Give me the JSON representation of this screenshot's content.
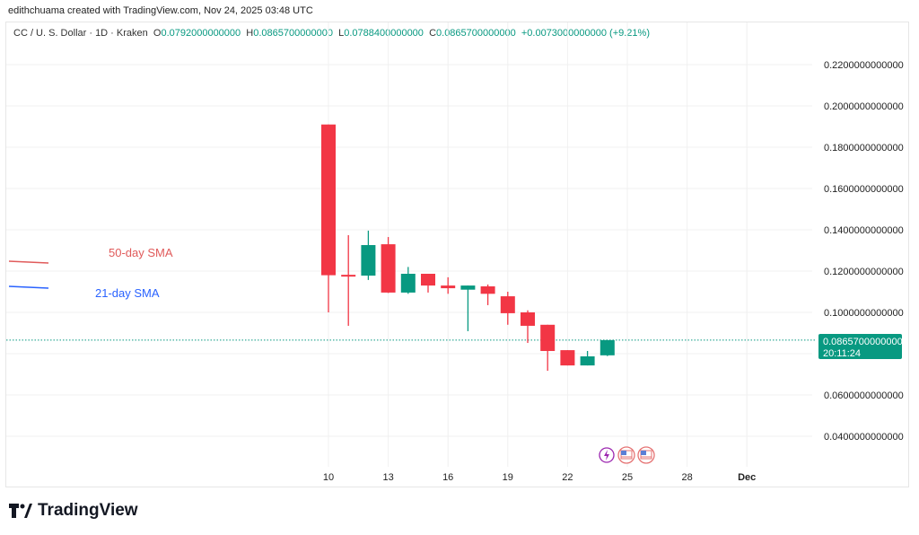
{
  "credit": "edithchuama created with TradingView.com, Nov 24, 2025 03:48 UTC",
  "legend": {
    "symbol": "CC / U. S. Dollar · 1D · Kraken",
    "o_label": "O",
    "o": "0.0792000000000",
    "h_label": "H",
    "h": "0.0865700000000",
    "l_label": "L",
    "l": "0.0788400000000",
    "c_label": "C",
    "c": "0.0865700000000",
    "change": "+0.0073000000000 (+9.21%)"
  },
  "annotations": {
    "sma50": "50-day SMA",
    "sma21": "21-day SMA"
  },
  "price_tag": {
    "price": "0.0865700000000",
    "countdown": "20:11:24"
  },
  "logo": "TradingView",
  "colors": {
    "up": "#089981",
    "down": "#f23645",
    "sma50": "#e05a5a",
    "sma21": "#2962ff"
  },
  "chart_data": {
    "type": "candlestick",
    "title": "",
    "ylim": [
      0.03,
      0.23
    ],
    "y_ticks": [
      "0.2200000000000",
      "0.2000000000000",
      "0.1800000000000",
      "0.1600000000000",
      "0.1400000000000",
      "0.1200000000000",
      "0.1000000000000",
      "0.0600000000000",
      "0.0400000000000"
    ],
    "y_tick_values": [
      0.22,
      0.2,
      0.18,
      0.16,
      0.14,
      0.12,
      0.1,
      0.06,
      0.04
    ],
    "x_ticks": [
      {
        "day": 10,
        "label": "10"
      },
      {
        "day": 13,
        "label": "13"
      },
      {
        "day": 16,
        "label": "16"
      },
      {
        "day": 19,
        "label": "19"
      },
      {
        "day": 22,
        "label": "22"
      },
      {
        "day": 25,
        "label": "25"
      },
      {
        "day": 28,
        "label": "28"
      },
      {
        "day": 31,
        "label": "Dec"
      }
    ],
    "grid": true,
    "last_price": 0.08657,
    "candles": [
      {
        "day": 10,
        "o": 0.191,
        "h": 0.191,
        "l": 0.1,
        "c": 0.118
      },
      {
        "day": 11,
        "o": 0.1182,
        "h": 0.1374,
        "l": 0.0935,
        "c": 0.1175
      },
      {
        "day": 12,
        "o": 0.1178,
        "h": 0.1396,
        "l": 0.1157,
        "c": 0.1326
      },
      {
        "day": 13,
        "o": 0.133,
        "h": 0.1365,
        "l": 0.1094,
        "c": 0.1096
      },
      {
        "day": 14,
        "o": 0.1096,
        "h": 0.122,
        "l": 0.109,
        "c": 0.1187
      },
      {
        "day": 15,
        "o": 0.1187,
        "h": 0.1187,
        "l": 0.1096,
        "c": 0.113
      },
      {
        "day": 16,
        "o": 0.113,
        "h": 0.117,
        "l": 0.109,
        "c": 0.1117
      },
      {
        "day": 17,
        "o": 0.111,
        "h": 0.113,
        "l": 0.0909,
        "c": 0.113
      },
      {
        "day": 18,
        "o": 0.1126,
        "h": 0.1135,
        "l": 0.1035,
        "c": 0.109
      },
      {
        "day": 19,
        "o": 0.1078,
        "h": 0.11,
        "l": 0.094,
        "c": 0.0996
      },
      {
        "day": 20,
        "o": 0.1,
        "h": 0.101,
        "l": 0.0852,
        "c": 0.0935
      },
      {
        "day": 21,
        "o": 0.094,
        "h": 0.094,
        "l": 0.0717,
        "c": 0.0813
      },
      {
        "day": 22,
        "o": 0.0817,
        "h": 0.0817,
        "l": 0.0743,
        "c": 0.0743
      },
      {
        "day": 23,
        "o": 0.0743,
        "h": 0.0813,
        "l": 0.0743,
        "c": 0.0787
      },
      {
        "day": 24,
        "o": 0.0792,
        "h": 0.08657,
        "l": 0.07884,
        "c": 0.08657
      }
    ],
    "events": [
      "lightning-icon",
      "us-flag-icon",
      "us-flag-icon"
    ]
  }
}
